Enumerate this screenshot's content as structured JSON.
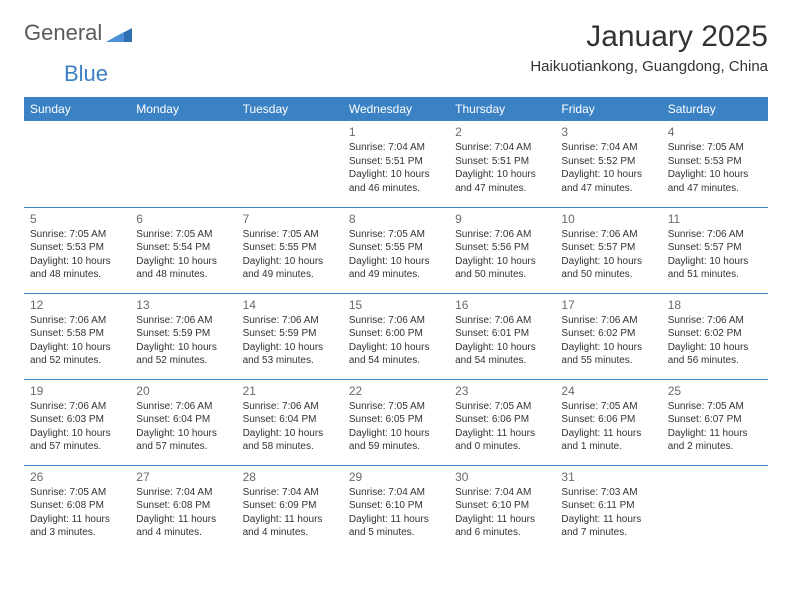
{
  "logo": {
    "text_part1": "General",
    "text_part2": "Blue",
    "triangle_color": "#2f6fb0",
    "text_color_gray": "#5a5a5a",
    "text_color_blue": "#3b7fc4"
  },
  "header": {
    "month_title": "January 2025",
    "location": "Haikuotiankong, Guangdong, China"
  },
  "colors": {
    "header_bg": "#3b82c4",
    "header_text": "#ffffff",
    "row_border": "#3b82c4",
    "day_num_color": "#6a6a6a",
    "body_text_color": "#333333",
    "page_bg": "#ffffff"
  },
  "day_headers": [
    "Sunday",
    "Monday",
    "Tuesday",
    "Wednesday",
    "Thursday",
    "Friday",
    "Saturday"
  ],
  "weeks": [
    [
      {
        "num": "",
        "sunrise": "",
        "sunset": "",
        "daylight": ""
      },
      {
        "num": "",
        "sunrise": "",
        "sunset": "",
        "daylight": ""
      },
      {
        "num": "",
        "sunrise": "",
        "sunset": "",
        "daylight": ""
      },
      {
        "num": "1",
        "sunrise": "Sunrise: 7:04 AM",
        "sunset": "Sunset: 5:51 PM",
        "daylight": "Daylight: 10 hours and 46 minutes."
      },
      {
        "num": "2",
        "sunrise": "Sunrise: 7:04 AM",
        "sunset": "Sunset: 5:51 PM",
        "daylight": "Daylight: 10 hours and 47 minutes."
      },
      {
        "num": "3",
        "sunrise": "Sunrise: 7:04 AM",
        "sunset": "Sunset: 5:52 PM",
        "daylight": "Daylight: 10 hours and 47 minutes."
      },
      {
        "num": "4",
        "sunrise": "Sunrise: 7:05 AM",
        "sunset": "Sunset: 5:53 PM",
        "daylight": "Daylight: 10 hours and 47 minutes."
      }
    ],
    [
      {
        "num": "5",
        "sunrise": "Sunrise: 7:05 AM",
        "sunset": "Sunset: 5:53 PM",
        "daylight": "Daylight: 10 hours and 48 minutes."
      },
      {
        "num": "6",
        "sunrise": "Sunrise: 7:05 AM",
        "sunset": "Sunset: 5:54 PM",
        "daylight": "Daylight: 10 hours and 48 minutes."
      },
      {
        "num": "7",
        "sunrise": "Sunrise: 7:05 AM",
        "sunset": "Sunset: 5:55 PM",
        "daylight": "Daylight: 10 hours and 49 minutes."
      },
      {
        "num": "8",
        "sunrise": "Sunrise: 7:05 AM",
        "sunset": "Sunset: 5:55 PM",
        "daylight": "Daylight: 10 hours and 49 minutes."
      },
      {
        "num": "9",
        "sunrise": "Sunrise: 7:06 AM",
        "sunset": "Sunset: 5:56 PM",
        "daylight": "Daylight: 10 hours and 50 minutes."
      },
      {
        "num": "10",
        "sunrise": "Sunrise: 7:06 AM",
        "sunset": "Sunset: 5:57 PM",
        "daylight": "Daylight: 10 hours and 50 minutes."
      },
      {
        "num": "11",
        "sunrise": "Sunrise: 7:06 AM",
        "sunset": "Sunset: 5:57 PM",
        "daylight": "Daylight: 10 hours and 51 minutes."
      }
    ],
    [
      {
        "num": "12",
        "sunrise": "Sunrise: 7:06 AM",
        "sunset": "Sunset: 5:58 PM",
        "daylight": "Daylight: 10 hours and 52 minutes."
      },
      {
        "num": "13",
        "sunrise": "Sunrise: 7:06 AM",
        "sunset": "Sunset: 5:59 PM",
        "daylight": "Daylight: 10 hours and 52 minutes."
      },
      {
        "num": "14",
        "sunrise": "Sunrise: 7:06 AM",
        "sunset": "Sunset: 5:59 PM",
        "daylight": "Daylight: 10 hours and 53 minutes."
      },
      {
        "num": "15",
        "sunrise": "Sunrise: 7:06 AM",
        "sunset": "Sunset: 6:00 PM",
        "daylight": "Daylight: 10 hours and 54 minutes."
      },
      {
        "num": "16",
        "sunrise": "Sunrise: 7:06 AM",
        "sunset": "Sunset: 6:01 PM",
        "daylight": "Daylight: 10 hours and 54 minutes."
      },
      {
        "num": "17",
        "sunrise": "Sunrise: 7:06 AM",
        "sunset": "Sunset: 6:02 PM",
        "daylight": "Daylight: 10 hours and 55 minutes."
      },
      {
        "num": "18",
        "sunrise": "Sunrise: 7:06 AM",
        "sunset": "Sunset: 6:02 PM",
        "daylight": "Daylight: 10 hours and 56 minutes."
      }
    ],
    [
      {
        "num": "19",
        "sunrise": "Sunrise: 7:06 AM",
        "sunset": "Sunset: 6:03 PM",
        "daylight": "Daylight: 10 hours and 57 minutes."
      },
      {
        "num": "20",
        "sunrise": "Sunrise: 7:06 AM",
        "sunset": "Sunset: 6:04 PM",
        "daylight": "Daylight: 10 hours and 57 minutes."
      },
      {
        "num": "21",
        "sunrise": "Sunrise: 7:06 AM",
        "sunset": "Sunset: 6:04 PM",
        "daylight": "Daylight: 10 hours and 58 minutes."
      },
      {
        "num": "22",
        "sunrise": "Sunrise: 7:05 AM",
        "sunset": "Sunset: 6:05 PM",
        "daylight": "Daylight: 10 hours and 59 minutes."
      },
      {
        "num": "23",
        "sunrise": "Sunrise: 7:05 AM",
        "sunset": "Sunset: 6:06 PM",
        "daylight": "Daylight: 11 hours and 0 minutes."
      },
      {
        "num": "24",
        "sunrise": "Sunrise: 7:05 AM",
        "sunset": "Sunset: 6:06 PM",
        "daylight": "Daylight: 11 hours and 1 minute."
      },
      {
        "num": "25",
        "sunrise": "Sunrise: 7:05 AM",
        "sunset": "Sunset: 6:07 PM",
        "daylight": "Daylight: 11 hours and 2 minutes."
      }
    ],
    [
      {
        "num": "26",
        "sunrise": "Sunrise: 7:05 AM",
        "sunset": "Sunset: 6:08 PM",
        "daylight": "Daylight: 11 hours and 3 minutes."
      },
      {
        "num": "27",
        "sunrise": "Sunrise: 7:04 AM",
        "sunset": "Sunset: 6:08 PM",
        "daylight": "Daylight: 11 hours and 4 minutes."
      },
      {
        "num": "28",
        "sunrise": "Sunrise: 7:04 AM",
        "sunset": "Sunset: 6:09 PM",
        "daylight": "Daylight: 11 hours and 4 minutes."
      },
      {
        "num": "29",
        "sunrise": "Sunrise: 7:04 AM",
        "sunset": "Sunset: 6:10 PM",
        "daylight": "Daylight: 11 hours and 5 minutes."
      },
      {
        "num": "30",
        "sunrise": "Sunrise: 7:04 AM",
        "sunset": "Sunset: 6:10 PM",
        "daylight": "Daylight: 11 hours and 6 minutes."
      },
      {
        "num": "31",
        "sunrise": "Sunrise: 7:03 AM",
        "sunset": "Sunset: 6:11 PM",
        "daylight": "Daylight: 11 hours and 7 minutes."
      },
      {
        "num": "",
        "sunrise": "",
        "sunset": "",
        "daylight": ""
      }
    ]
  ]
}
